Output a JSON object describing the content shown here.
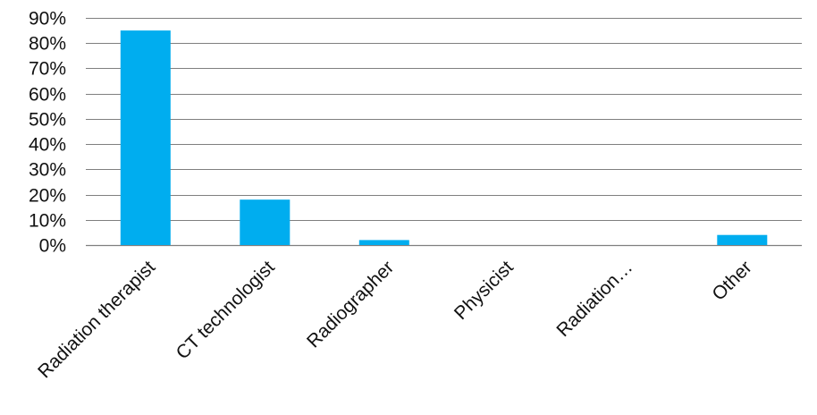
{
  "chart_data": {
    "type": "bar",
    "categories": [
      "Radiation therapist",
      "CT technologist",
      "Radiographer",
      "Physicist",
      "Radiation…",
      "Other"
    ],
    "values": [
      85,
      18,
      2,
      0,
      0,
      4
    ],
    "y_unit": "%",
    "ylim": [
      0,
      90
    ],
    "yticks": [
      "0%",
      "10%",
      "20%",
      "30%",
      "40%",
      "50%",
      "60%",
      "70%",
      "80%",
      "90%"
    ],
    "grid": true,
    "legend": "none",
    "title": "",
    "xlabel": "",
    "ylabel": "",
    "colors": {
      "bar": "#00adef",
      "grid": "#7f7f7f",
      "text": "#111111"
    }
  }
}
